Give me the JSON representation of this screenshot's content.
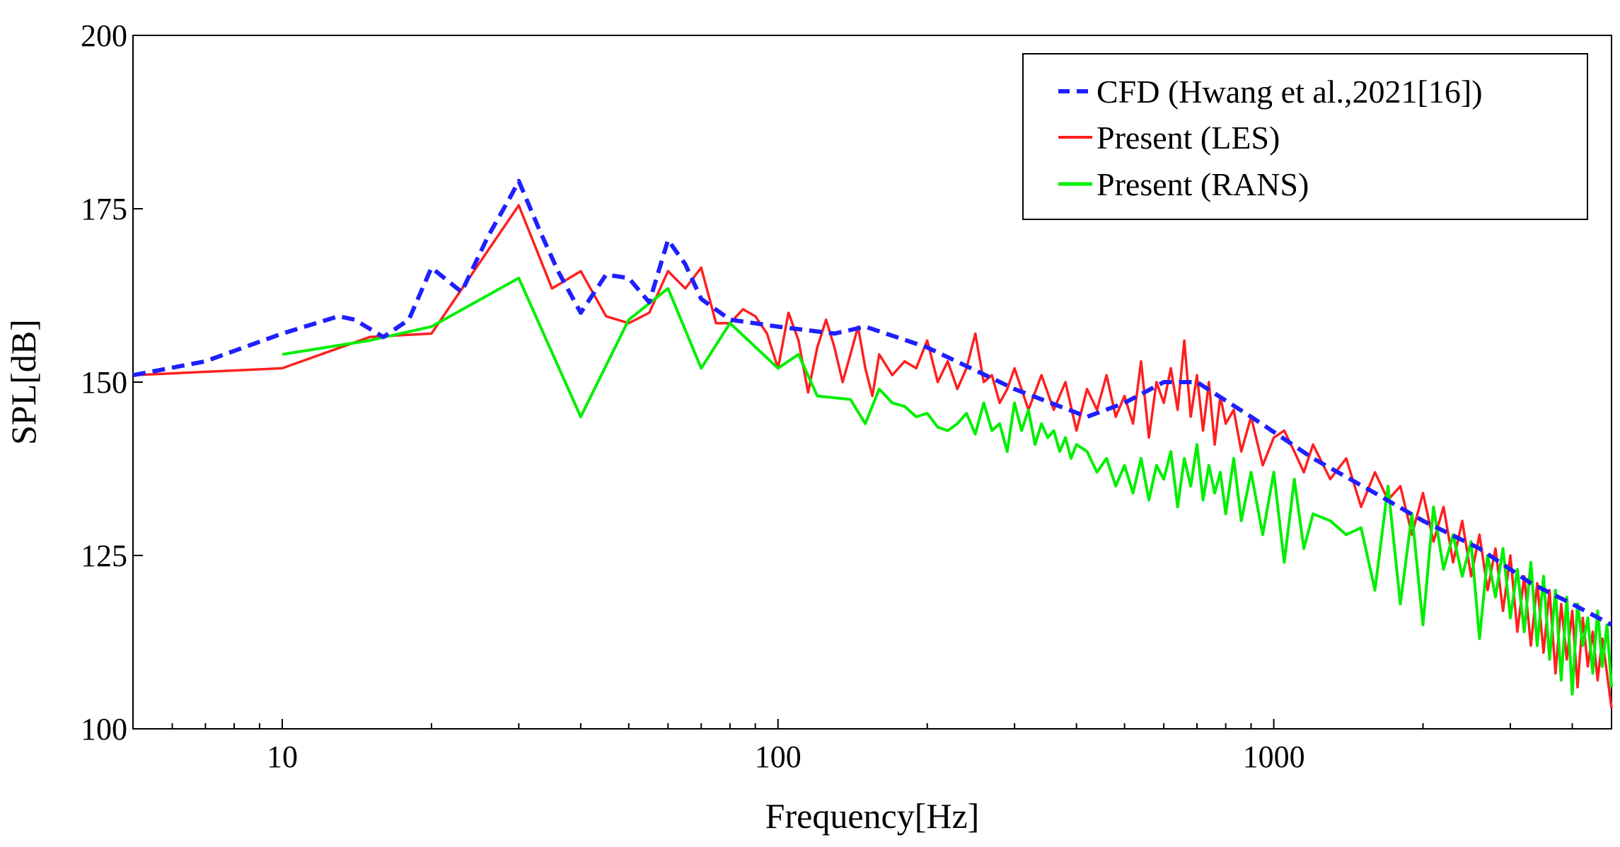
{
  "chart_data": {
    "type": "line",
    "title": "",
    "xlabel": "Frequency[Hz]",
    "ylabel": "SPL[dB]",
    "xscale": "log",
    "xlim": [
      5,
      4800
    ],
    "ylim": [
      100,
      200
    ],
    "xticks": [
      10,
      100,
      1000
    ],
    "xtick_labels": [
      "10",
      "100",
      "1000"
    ],
    "yticks": [
      100,
      125,
      150,
      175,
      200
    ],
    "ytick_labels": [
      "100",
      "125",
      "150",
      "175",
      "200"
    ],
    "grid": false,
    "legend_position": "top-right",
    "series": [
      {
        "name": "CFD (Hwang et al.,2021[16])",
        "color": "#1f1fff",
        "style": "dashed",
        "x": [
          5,
          7,
          10,
          13,
          14,
          16,
          18,
          20,
          23,
          26,
          29,
          30,
          33,
          36,
          40,
          45,
          50,
          55,
          60,
          65,
          70,
          80,
          100,
          130,
          150,
          200,
          300,
          420,
          500,
          600,
          700,
          900,
          1200,
          1600,
          2000,
          2600,
          3300,
          4000,
          4800
        ],
        "values": [
          151,
          153,
          157,
          159.5,
          159,
          156.5,
          159,
          166.5,
          163,
          171,
          177,
          179,
          172,
          166,
          160,
          165.5,
          165,
          161.5,
          170.5,
          167,
          162,
          159,
          158,
          157,
          158,
          155,
          149,
          145,
          147,
          150,
          150,
          145,
          139,
          134,
          130,
          126,
          121,
          118,
          115
        ]
      },
      {
        "name": "Present (LES)",
        "color": "#ff1f1f",
        "style": "solid",
        "x": [
          5,
          10,
          15,
          20,
          30,
          35,
          40,
          45,
          50,
          55,
          60,
          65,
          70,
          75,
          80,
          85,
          90,
          95,
          100,
          105,
          110,
          115,
          120,
          125,
          130,
          135,
          140,
          145,
          150,
          155,
          160,
          170,
          180,
          190,
          200,
          210,
          220,
          230,
          240,
          250,
          260,
          270,
          280,
          290,
          300,
          320,
          340,
          360,
          380,
          400,
          420,
          440,
          460,
          480,
          500,
          520,
          540,
          560,
          580,
          600,
          620,
          640,
          660,
          680,
          700,
          720,
          740,
          760,
          780,
          800,
          830,
          860,
          900,
          950,
          1000,
          1050,
          1100,
          1150,
          1200,
          1300,
          1400,
          1500,
          1600,
          1700,
          1800,
          1900,
          2000,
          2100,
          2200,
          2300,
          2400,
          2500,
          2600,
          2700,
          2800,
          2900,
          3000,
          3100,
          3200,
          3300,
          3400,
          3500,
          3600,
          3700,
          3800,
          3900,
          4000,
          4100,
          4200,
          4300,
          4400,
          4500,
          4600,
          4700,
          4800
        ],
        "values": [
          151,
          152,
          156.5,
          157,
          175.5,
          163.5,
          166,
          159.5,
          158.5,
          160,
          166,
          163.5,
          166.5,
          158.5,
          158.5,
          160.5,
          159.5,
          157,
          152,
          160,
          156,
          148.5,
          155,
          159,
          155,
          150,
          154,
          158,
          152,
          148,
          154,
          151,
          153,
          152,
          156,
          150,
          153,
          149,
          152,
          157,
          150,
          151,
          147,
          149,
          152,
          146,
          151,
          146,
          150,
          143,
          149,
          146,
          151,
          145,
          148,
          144,
          153,
          142,
          150,
          147,
          152,
          146,
          156,
          145,
          151,
          143,
          150,
          141,
          148,
          144,
          146,
          140,
          145,
          138,
          142,
          143,
          140,
          137,
          141,
          136,
          139,
          132,
          137,
          133,
          135,
          128,
          134,
          127,
          132,
          124,
          130,
          122,
          128,
          120,
          126,
          117,
          125,
          114,
          122,
          112,
          121,
          111,
          120,
          108,
          118,
          110,
          117,
          106,
          116,
          109,
          114,
          107,
          113,
          108,
          103
        ]
      },
      {
        "name": "Present (RANS)",
        "color": "#00ee00",
        "style": "solid",
        "x": [
          10,
          15,
          20,
          30,
          40,
          50,
          60,
          70,
          80,
          100,
          110,
          120,
          140,
          150,
          160,
          170,
          180,
          190,
          200,
          210,
          220,
          230,
          240,
          250,
          260,
          270,
          280,
          290,
          300,
          310,
          320,
          330,
          340,
          350,
          360,
          370,
          380,
          390,
          400,
          420,
          440,
          460,
          480,
          500,
          520,
          540,
          560,
          580,
          600,
          620,
          640,
          660,
          680,
          700,
          720,
          740,
          760,
          780,
          800,
          830,
          860,
          900,
          950,
          1000,
          1050,
          1100,
          1150,
          1200,
          1300,
          1400,
          1500,
          1600,
          1700,
          1800,
          1900,
          2000,
          2100,
          2200,
          2300,
          2400,
          2500,
          2600,
          2700,
          2800,
          2900,
          3000,
          3100,
          3200,
          3300,
          3400,
          3500,
          3600,
          3700,
          3800,
          3900,
          4000,
          4100,
          4200,
          4300,
          4400,
          4500,
          4600,
          4700,
          4800
        ],
        "values": [
          154,
          156,
          158,
          165,
          145,
          159,
          163.5,
          152,
          158.5,
          152,
          154,
          148,
          147.5,
          144,
          149,
          147,
          146.5,
          145,
          145.5,
          143.5,
          143,
          144,
          145.5,
          142.5,
          147,
          143,
          144,
          140,
          147,
          143,
          146,
          141,
          144,
          142,
          143,
          140,
          142,
          139,
          141,
          140,
          137,
          139,
          135,
          138,
          134,
          139,
          133,
          138,
          136,
          140,
          132,
          139,
          135,
          141,
          133,
          138,
          134,
          137,
          131,
          139,
          130,
          137,
          128,
          137,
          124,
          136,
          126,
          131,
          130,
          128,
          129,
          120,
          135,
          118,
          131,
          115,
          132,
          123,
          128,
          122,
          127,
          113,
          125,
          119,
          126,
          116,
          123,
          114,
          124,
          112,
          122,
          110,
          120,
          107,
          119,
          105,
          118,
          112,
          116,
          108,
          117,
          109,
          115,
          106
        ]
      }
    ]
  }
}
